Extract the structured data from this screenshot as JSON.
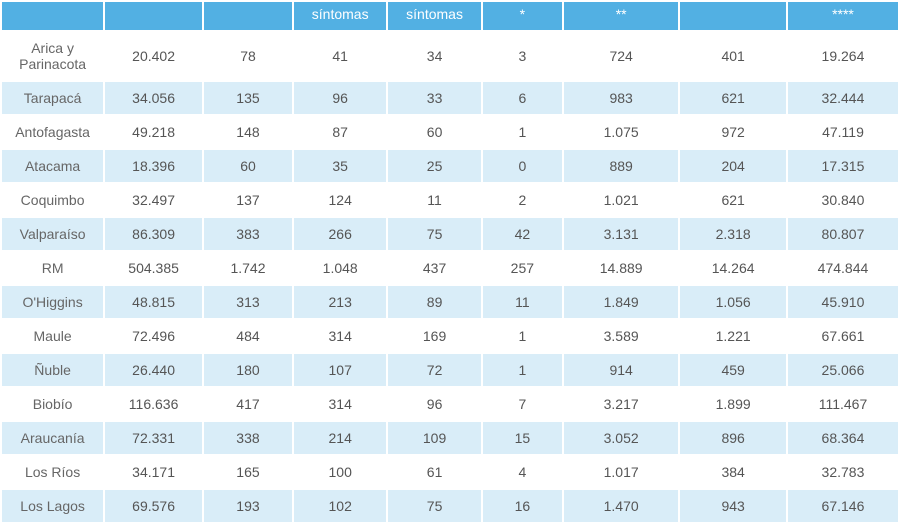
{
  "table": {
    "header_bg": "#52b0e3",
    "header_fg": "#ffffff",
    "row_odd_bg": "#ffffff",
    "row_even_bg": "#d9edf8",
    "text_color": "#555555",
    "font_size": 14,
    "columns": [
      {
        "label": ""
      },
      {
        "label": ""
      },
      {
        "label": ""
      },
      {
        "label": "síntomas"
      },
      {
        "label": "síntomas"
      },
      {
        "label": "*"
      },
      {
        "label": "**"
      },
      {
        "label": ""
      },
      {
        "label": "****"
      }
    ],
    "rows": [
      {
        "region": "Arica y Parinacota",
        "c1": "20.402",
        "c2": "78",
        "c3": "41",
        "c4": "34",
        "c5": "3",
        "c6": "724",
        "c7": "401",
        "c8": "19.264"
      },
      {
        "region": "Tarapacá",
        "c1": "34.056",
        "c2": "135",
        "c3": "96",
        "c4": "33",
        "c5": "6",
        "c6": "983",
        "c7": "621",
        "c8": "32.444"
      },
      {
        "region": "Antofagasta",
        "c1": "49.218",
        "c2": "148",
        "c3": "87",
        "c4": "60",
        "c5": "1",
        "c6": "1.075",
        "c7": "972",
        "c8": "47.119"
      },
      {
        "region": "Atacama",
        "c1": "18.396",
        "c2": "60",
        "c3": "35",
        "c4": "25",
        "c5": "0",
        "c6": "889",
        "c7": "204",
        "c8": "17.315"
      },
      {
        "region": "Coquimbo",
        "c1": "32.497",
        "c2": "137",
        "c3": "124",
        "c4": "11",
        "c5": "2",
        "c6": "1.021",
        "c7": "621",
        "c8": "30.840"
      },
      {
        "region": "Valparaíso",
        "c1": "86.309",
        "c2": "383",
        "c3": "266",
        "c4": "75",
        "c5": "42",
        "c6": "3.131",
        "c7": "2.318",
        "c8": "80.807"
      },
      {
        "region": "RM",
        "c1": "504.385",
        "c2": "1.742",
        "c3": "1.048",
        "c4": "437",
        "c5": "257",
        "c6": "14.889",
        "c7": "14.264",
        "c8": "474.844"
      },
      {
        "region": "O'Higgins",
        "c1": "48.815",
        "c2": "313",
        "c3": "213",
        "c4": "89",
        "c5": "11",
        "c6": "1.849",
        "c7": "1.056",
        "c8": "45.910"
      },
      {
        "region": "Maule",
        "c1": "72.496",
        "c2": "484",
        "c3": "314",
        "c4": "169",
        "c5": "1",
        "c6": "3.589",
        "c7": "1.221",
        "c8": "67.661"
      },
      {
        "region": "Ñuble",
        "c1": "26.440",
        "c2": "180",
        "c3": "107",
        "c4": "72",
        "c5": "1",
        "c6": "914",
        "c7": "459",
        "c8": "25.066"
      },
      {
        "region": "Biobío",
        "c1": "116.636",
        "c2": "417",
        "c3": "314",
        "c4": "96",
        "c5": "7",
        "c6": "3.217",
        "c7": "1.899",
        "c8": "111.467"
      },
      {
        "region": "Araucanía",
        "c1": "72.331",
        "c2": "338",
        "c3": "214",
        "c4": "109",
        "c5": "15",
        "c6": "3.052",
        "c7": "896",
        "c8": "68.364"
      },
      {
        "region": "Los Ríos",
        "c1": "34.171",
        "c2": "165",
        "c3": "100",
        "c4": "61",
        "c5": "4",
        "c6": "1.017",
        "c7": "384",
        "c8": "32.783"
      },
      {
        "region": "Los Lagos",
        "c1": "69.576",
        "c2": "193",
        "c3": "102",
        "c4": "75",
        "c5": "16",
        "c6": "1.470",
        "c7": "943",
        "c8": "67.146"
      }
    ]
  }
}
